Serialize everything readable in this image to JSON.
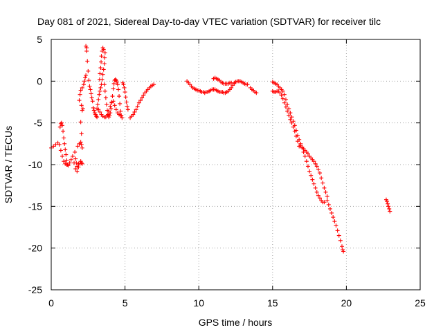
{
  "chart_data": {
    "type": "scatter",
    "title": "Day 081 of 2021, Sidereal Day-to-day VTEC variation (SDTVAR) for receiver tilc",
    "xlabel": "GPS time / hours",
    "ylabel": "SDTVAR / TECUs",
    "xlim": [
      0,
      25
    ],
    "ylim": [
      -25,
      5
    ],
    "xticks": [
      0,
      5,
      10,
      15,
      20,
      25
    ],
    "yticks": [
      -25,
      -20,
      -15,
      -10,
      -5,
      0,
      5
    ],
    "xtick_labels": [
      "0",
      "5",
      "10",
      "15",
      "20",
      "25"
    ],
    "ytick_labels": [
      "-25",
      "-20",
      "-15",
      "-10",
      "-5",
      "0",
      "5"
    ],
    "grid": true,
    "marker": "+",
    "marker_color": "#ff0000",
    "series": [
      {
        "name": "SDTVAR",
        "points": [
          [
            0.0,
            -8.0
          ],
          [
            0.15,
            -7.8
          ],
          [
            0.3,
            -7.6
          ],
          [
            0.45,
            -7.4
          ],
          [
            0.55,
            -7.6
          ],
          [
            0.65,
            -8.3
          ],
          [
            0.75,
            -9.0
          ],
          [
            0.85,
            -9.6
          ],
          [
            0.95,
            -9.9
          ],
          [
            1.05,
            -10.0
          ],
          [
            1.15,
            -10.1
          ],
          [
            1.25,
            -9.8
          ],
          [
            1.35,
            -9.4
          ],
          [
            1.45,
            -9.0
          ],
          [
            1.55,
            -9.8
          ],
          [
            1.65,
            -10.5
          ],
          [
            1.75,
            -10.8
          ],
          [
            1.85,
            -10.3
          ],
          [
            1.95,
            -9.9
          ],
          [
            0.6,
            -5.5
          ],
          [
            0.65,
            -5.1
          ],
          [
            0.7,
            -5.0
          ],
          [
            0.75,
            -5.3
          ],
          [
            0.8,
            -6.0
          ],
          [
            0.85,
            -6.8
          ],
          [
            0.9,
            -7.5
          ],
          [
            0.95,
            -8.2
          ],
          [
            1.0,
            -8.8
          ],
          [
            1.05,
            -9.5
          ],
          [
            1.1,
            -10.0
          ],
          [
            1.6,
            -8.5
          ],
          [
            1.65,
            -9.3
          ],
          [
            1.7,
            -9.8
          ],
          [
            1.75,
            -10.2
          ],
          [
            1.85,
            -9.9
          ],
          [
            2.0,
            -9.6
          ],
          [
            2.05,
            -9.8
          ],
          [
            2.1,
            -9.9
          ],
          [
            1.8,
            -7.8
          ],
          [
            1.9,
            -7.5
          ],
          [
            2.0,
            -7.3
          ],
          [
            2.05,
            -7.6
          ],
          [
            2.1,
            -8.0
          ],
          [
            2.05,
            -6.3
          ],
          [
            2.0,
            -4.9
          ],
          [
            2.1,
            -3.5
          ],
          [
            1.9,
            -2.3
          ],
          [
            1.95,
            -1.6
          ],
          [
            2.0,
            -1.1
          ],
          [
            2.1,
            -0.8
          ],
          [
            2.2,
            -0.4
          ],
          [
            2.25,
            0.0
          ],
          [
            2.3,
            0.4
          ],
          [
            2.35,
            0.7
          ],
          [
            2.05,
            -2.9
          ],
          [
            2.15,
            -3.3
          ],
          [
            2.35,
            4.2
          ],
          [
            2.4,
            4.0
          ],
          [
            2.4,
            3.6
          ],
          [
            2.45,
            2.4
          ],
          [
            2.5,
            1.2
          ],
          [
            2.55,
            0.1
          ],
          [
            2.6,
            -0.6
          ],
          [
            2.65,
            -1.0
          ],
          [
            2.7,
            -1.5
          ],
          [
            2.75,
            -2.0
          ],
          [
            2.8,
            -2.4
          ],
          [
            2.85,
            -3.2
          ],
          [
            2.9,
            -3.5
          ],
          [
            2.95,
            -3.8
          ],
          [
            3.0,
            -4.0
          ],
          [
            3.05,
            -4.2
          ],
          [
            3.1,
            -4.3
          ],
          [
            3.1,
            -3.3
          ],
          [
            3.15,
            -2.8
          ],
          [
            3.2,
            -2.2
          ],
          [
            3.25,
            -1.6
          ],
          [
            3.3,
            -1.2
          ],
          [
            3.35,
            -0.8
          ],
          [
            3.4,
            -0.4
          ],
          [
            3.45,
            0.2
          ],
          [
            3.5,
            0.8
          ],
          [
            3.55,
            1.4
          ],
          [
            3.6,
            2.1
          ],
          [
            3.62,
            2.8
          ],
          [
            3.65,
            3.4
          ],
          [
            3.55,
            3.8
          ],
          [
            3.5,
            4.0
          ],
          [
            3.45,
            3.6
          ],
          [
            3.4,
            3.0
          ],
          [
            3.38,
            2.3
          ],
          [
            3.35,
            1.6
          ],
          [
            3.3,
            0.9
          ],
          [
            3.28,
            0.2
          ],
          [
            3.6,
            -0.4
          ],
          [
            3.65,
            -1.2
          ],
          [
            3.7,
            -2.0
          ],
          [
            3.75,
            -2.8
          ],
          [
            3.8,
            -3.5
          ],
          [
            3.85,
            -4.0
          ],
          [
            3.9,
            -4.3
          ],
          [
            3.95,
            -4.1
          ],
          [
            4.0,
            -3.8
          ],
          [
            4.05,
            -3.3
          ],
          [
            4.1,
            -2.6
          ],
          [
            4.15,
            -1.8
          ],
          [
            4.2,
            -0.9
          ],
          [
            4.25,
            -0.3
          ],
          [
            4.3,
            0.1
          ],
          [
            4.35,
            0.2
          ],
          [
            4.4,
            0.1
          ],
          [
            4.45,
            -0.1
          ],
          [
            4.5,
            -0.4
          ],
          [
            4.55,
            -1.0
          ],
          [
            4.6,
            -1.8
          ],
          [
            4.65,
            -2.7
          ],
          [
            4.7,
            -3.6
          ],
          [
            4.75,
            -4.1
          ],
          [
            4.8,
            -4.4
          ],
          [
            3.2,
            -3.4
          ],
          [
            3.3,
            -3.7
          ],
          [
            3.4,
            -4.0
          ],
          [
            3.5,
            -4.2
          ],
          [
            3.6,
            -4.3
          ],
          [
            3.7,
            -4.3
          ],
          [
            3.8,
            -4.1
          ],
          [
            3.9,
            -3.6
          ],
          [
            4.0,
            -3.0
          ],
          [
            4.1,
            -2.5
          ],
          [
            4.2,
            -2.4
          ],
          [
            4.3,
            -2.9
          ],
          [
            4.4,
            -3.4
          ],
          [
            4.5,
            -3.8
          ],
          [
            4.6,
            -4.0
          ],
          [
            4.7,
            -4.1
          ],
          [
            4.85,
            -0.2
          ],
          [
            4.9,
            -0.4
          ],
          [
            4.95,
            -0.8
          ],
          [
            5.0,
            -1.3
          ],
          [
            5.05,
            -1.9
          ],
          [
            5.1,
            -2.5
          ],
          [
            5.15,
            -3.0
          ],
          [
            5.2,
            -3.4
          ],
          [
            5.35,
            -4.4
          ],
          [
            5.45,
            -4.2
          ],
          [
            5.55,
            -4.0
          ],
          [
            5.65,
            -3.7
          ],
          [
            5.75,
            -3.4
          ],
          [
            5.85,
            -3.0
          ],
          [
            5.95,
            -2.6
          ],
          [
            6.05,
            -2.3
          ],
          [
            6.15,
            -2.0
          ],
          [
            6.25,
            -1.7
          ],
          [
            6.35,
            -1.4
          ],
          [
            6.45,
            -1.2
          ],
          [
            6.55,
            -1.0
          ],
          [
            6.65,
            -0.8
          ],
          [
            6.75,
            -0.6
          ],
          [
            6.85,
            -0.5
          ],
          [
            6.95,
            -0.4
          ],
          [
            9.2,
            0.0
          ],
          [
            9.3,
            -0.2
          ],
          [
            9.4,
            -0.4
          ],
          [
            9.5,
            -0.6
          ],
          [
            9.6,
            -0.8
          ],
          [
            9.7,
            -0.9
          ],
          [
            9.8,
            -1.0
          ],
          [
            9.9,
            -1.1
          ],
          [
            10.0,
            -1.1
          ],
          [
            10.1,
            -1.2
          ],
          [
            10.2,
            -1.3
          ],
          [
            10.3,
            -1.3
          ],
          [
            10.4,
            -1.4
          ],
          [
            10.5,
            -1.3
          ],
          [
            10.6,
            -1.3
          ],
          [
            10.7,
            -1.2
          ],
          [
            10.8,
            -1.1
          ],
          [
            10.9,
            -1.0
          ],
          [
            11.0,
            -1.0
          ],
          [
            11.0,
            0.3
          ],
          [
            11.1,
            0.4
          ],
          [
            11.2,
            0.3
          ],
          [
            11.3,
            0.2
          ],
          [
            11.4,
            0.1
          ],
          [
            11.5,
            -0.1
          ],
          [
            11.6,
            -0.2
          ],
          [
            11.7,
            -0.3
          ],
          [
            11.8,
            -0.3
          ],
          [
            11.9,
            -0.3
          ],
          [
            12.0,
            -0.3
          ],
          [
            12.1,
            -0.2
          ],
          [
            12.2,
            -0.2
          ],
          [
            11.0,
            -1.0
          ],
          [
            11.1,
            -1.0
          ],
          [
            11.2,
            -1.1
          ],
          [
            11.3,
            -1.2
          ],
          [
            11.4,
            -1.3
          ],
          [
            11.5,
            -1.3
          ],
          [
            11.6,
            -1.3
          ],
          [
            11.7,
            -1.4
          ],
          [
            11.8,
            -1.4
          ],
          [
            11.9,
            -1.3
          ],
          [
            12.0,
            -1.2
          ],
          [
            12.1,
            -1.0
          ],
          [
            12.2,
            -0.8
          ],
          [
            12.3,
            -0.5
          ],
          [
            12.4,
            -0.3
          ],
          [
            12.4,
            -0.2
          ],
          [
            12.5,
            -0.1
          ],
          [
            12.6,
            0.0
          ],
          [
            12.7,
            0.0
          ],
          [
            12.8,
            0.0
          ],
          [
            12.9,
            -0.1
          ],
          [
            13.0,
            -0.2
          ],
          [
            13.1,
            -0.3
          ],
          [
            13.2,
            -0.4
          ],
          [
            13.3,
            -0.4
          ],
          [
            13.5,
            -0.8
          ],
          [
            13.6,
            -1.0
          ],
          [
            13.7,
            -1.1
          ],
          [
            13.8,
            -1.3
          ],
          [
            13.9,
            -1.4
          ],
          [
            15.0,
            -0.1
          ],
          [
            15.1,
            -0.2
          ],
          [
            15.2,
            -0.3
          ],
          [
            15.3,
            -0.4
          ],
          [
            15.4,
            -0.6
          ],
          [
            15.5,
            -0.8
          ],
          [
            15.6,
            -1.0
          ],
          [
            15.7,
            -1.2
          ],
          [
            15.8,
            -1.6
          ],
          [
            15.9,
            -2.2
          ],
          [
            16.0,
            -2.8
          ],
          [
            16.1,
            -3.3
          ],
          [
            16.2,
            -3.8
          ],
          [
            16.3,
            -4.3
          ],
          [
            16.4,
            -4.8
          ],
          [
            16.5,
            -5.3
          ],
          [
            16.6,
            -5.9
          ],
          [
            16.7,
            -6.5
          ],
          [
            16.8,
            -7.0
          ],
          [
            16.9,
            -7.5
          ],
          [
            15.0,
            -1.2
          ],
          [
            15.1,
            -1.3
          ],
          [
            15.2,
            -1.3
          ],
          [
            15.3,
            -1.2
          ],
          [
            15.4,
            -1.2
          ],
          [
            15.5,
            -1.4
          ],
          [
            15.6,
            -1.7
          ],
          [
            15.7,
            -2.1
          ],
          [
            15.8,
            -2.6
          ],
          [
            15.9,
            -3.1
          ],
          [
            16.0,
            -3.6
          ],
          [
            16.1,
            -4.1
          ],
          [
            16.2,
            -4.6
          ],
          [
            16.3,
            -5.0
          ],
          [
            16.4,
            -5.5
          ],
          [
            16.5,
            -6.0
          ],
          [
            16.6,
            -6.6
          ],
          [
            16.7,
            -7.2
          ],
          [
            16.8,
            -7.8
          ],
          [
            17.0,
            -8.0
          ],
          [
            17.1,
            -8.5
          ],
          [
            17.2,
            -9.0
          ],
          [
            17.3,
            -9.6
          ],
          [
            17.4,
            -10.2
          ],
          [
            17.5,
            -10.8
          ],
          [
            17.6,
            -11.3
          ],
          [
            17.7,
            -11.8
          ],
          [
            17.8,
            -12.3
          ],
          [
            17.9,
            -12.8
          ],
          [
            18.0,
            -13.3
          ],
          [
            18.1,
            -13.7
          ],
          [
            18.2,
            -14.0
          ],
          [
            18.3,
            -14.3
          ],
          [
            18.4,
            -14.5
          ],
          [
            18.5,
            -14.5
          ],
          [
            16.9,
            -7.7
          ],
          [
            17.0,
            -7.9
          ],
          [
            17.1,
            -8.1
          ],
          [
            17.2,
            -8.3
          ],
          [
            17.3,
            -8.5
          ],
          [
            17.4,
            -8.7
          ],
          [
            17.5,
            -9.0
          ],
          [
            17.6,
            -9.2
          ],
          [
            17.7,
            -9.4
          ],
          [
            17.8,
            -9.6
          ],
          [
            17.9,
            -9.9
          ],
          [
            18.0,
            -10.2
          ],
          [
            18.1,
            -10.6
          ],
          [
            18.2,
            -11.0
          ],
          [
            18.3,
            -11.6
          ],
          [
            18.4,
            -12.2
          ],
          [
            18.5,
            -12.8
          ],
          [
            18.6,
            -13.3
          ],
          [
            18.7,
            -13.8
          ],
          [
            18.7,
            -14.3
          ],
          [
            18.8,
            -14.8
          ],
          [
            18.9,
            -15.3
          ],
          [
            19.0,
            -15.8
          ],
          [
            19.1,
            -16.3
          ],
          [
            19.2,
            -16.8
          ],
          [
            19.3,
            -17.3
          ],
          [
            19.4,
            -17.9
          ],
          [
            19.5,
            -18.5
          ],
          [
            19.6,
            -19.1
          ],
          [
            19.7,
            -19.8
          ],
          [
            19.75,
            -20.2
          ],
          [
            19.8,
            -20.4
          ],
          [
            22.7,
            -14.2
          ],
          [
            22.75,
            -14.4
          ],
          [
            22.8,
            -14.7
          ],
          [
            22.85,
            -15.0
          ],
          [
            22.9,
            -15.3
          ],
          [
            22.95,
            -15.6
          ]
        ]
      }
    ]
  }
}
